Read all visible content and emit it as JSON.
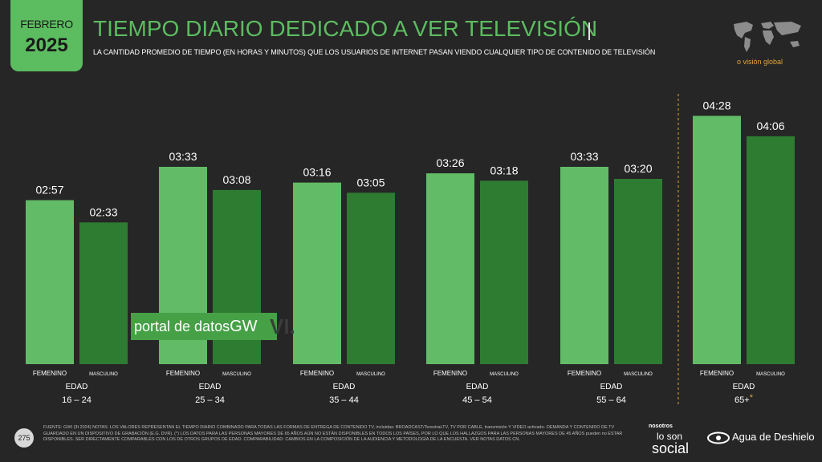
{
  "header": {
    "month": "FEBRERO",
    "year": "2025",
    "title": "TIEMPO DIARIO DEDICADO A VER TELEVISIÓN",
    "subtitle": "LA CANTIDAD PROMEDIO DE TIEMPO (EN HORAS Y MINUTOS) QUE LOS USUARIOS DE INTERNET PASAN VIENDO CUALQUIER TIPO DE CONTENIDO DE TELEVISIÓN",
    "world_label": "o visión global"
  },
  "watermark": {
    "text": "portal de datos",
    "brand": "GW"
  },
  "chart_data": {
    "type": "bar",
    "group_label": "EDAD",
    "categories": [
      "16 – 24",
      "25 – 34",
      "35 – 44",
      "45 – 54",
      "55 – 64",
      "65+"
    ],
    "category_marker": {
      "index": 5,
      "mark": "*"
    },
    "series": [
      {
        "name": "FEMENINO",
        "color": "#62bb66",
        "values": [
          "02:57",
          "03:33",
          "03:16",
          "03:26",
          "03:33",
          "04:28"
        ],
        "minutes": [
          177,
          213,
          196,
          206,
          213,
          268
        ]
      },
      {
        "name": "MASCULINO",
        "color": "#2e7c32",
        "values": [
          "02:33",
          "03:08",
          "03:05",
          "03:18",
          "03:20",
          "04:06"
        ],
        "minutes": [
          153,
          188,
          185,
          198,
          200,
          246
        ]
      }
    ],
    "highlight_color": "#e3a33c"
  },
  "footer": {
    "page": "275",
    "note": "FUENTE: GWI (3t 2024) NOTAS: LOS VALORES REPRESENTAN EL TIEMPO DIARIO COMBINADO PARA TODAS LAS FORMAS DE ENTREGA DE CONTENIDO TV, incluidas: BROADCAST/TerestraLTV, TV POR CABLE, transmisión Y VIDEO activado- DEMANDA Y CONTENIDO DE TV GUARDADO EN UN DISPOSITIVO DE GRABACIÓN (E.G. DVR). (*) LOS DATOS PARA LAS PERSONAS MAYORES DE 65 AÑOS AÚN NO ESTÁN DISPONIBLES EN TODOS LOS PAÍSES, POR LO QUE LOS HALLAZGOS PARA LAS PERSONAS MAYORES DE 45 AÑOS pueden no ESTAR DISPONIBLES. SER DIRECTAMENTE COMPARABLES CON LOS DE OTROS GRUPOS DE EDAD. COMPARABILIDAD: CAMBIOS EN LA COMPOSICIÓN DE LA AUDIENCIA Y METODOLOGÍA DE LA ENCUESTA. VER NOTAS DATOS CN.",
    "logo_nosotros": "nosotros",
    "logo_loson": "lo son",
    "logo_social": "social",
    "logo_agua": "Agua de Deshielo"
  }
}
